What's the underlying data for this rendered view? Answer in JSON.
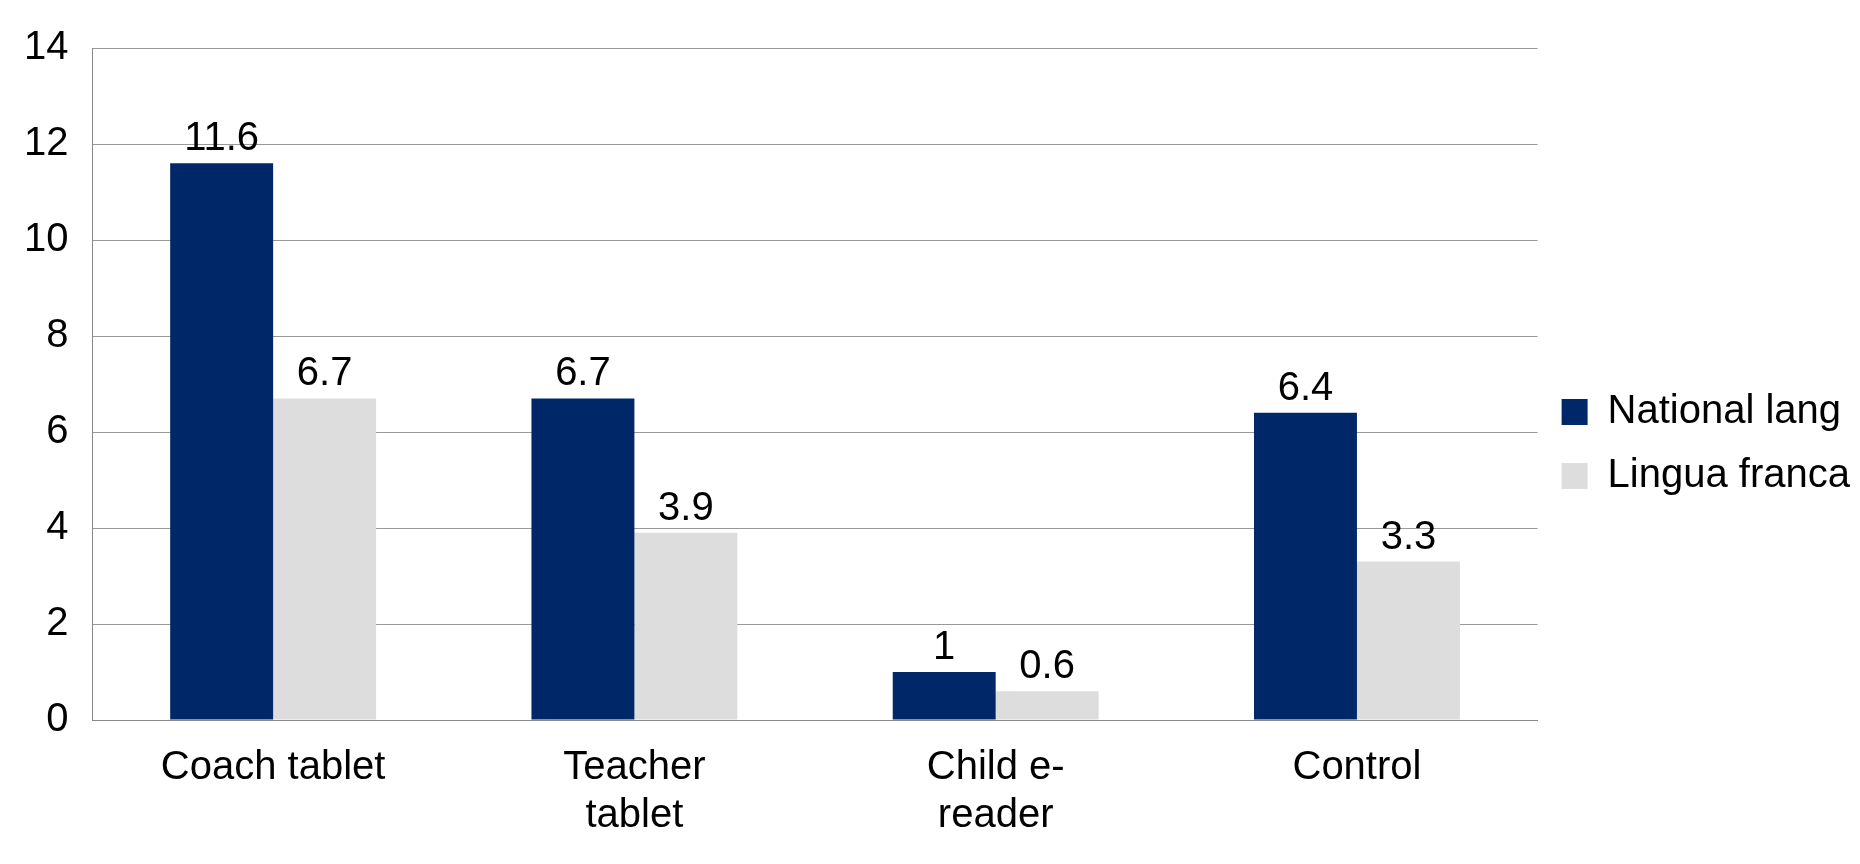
{
  "chart_data": {
    "type": "bar",
    "categories": [
      "Coach tablet",
      "Teacher tablet",
      "Child e-reader",
      "Control"
    ],
    "series": [
      {
        "name": "National lang",
        "color": "#002868",
        "values": [
          11.6,
          6.7,
          1,
          6.4
        ]
      },
      {
        "name": "Lingua franca",
        "color": "#dddddd",
        "values": [
          6.7,
          3.9,
          0.6,
          3.3
        ]
      }
    ],
    "ylim": [
      0,
      14
    ],
    "yticks": [
      0,
      2,
      4,
      6,
      8,
      10,
      12,
      14
    ],
    "grid": "y",
    "legend": "right",
    "data_labels": true
  }
}
